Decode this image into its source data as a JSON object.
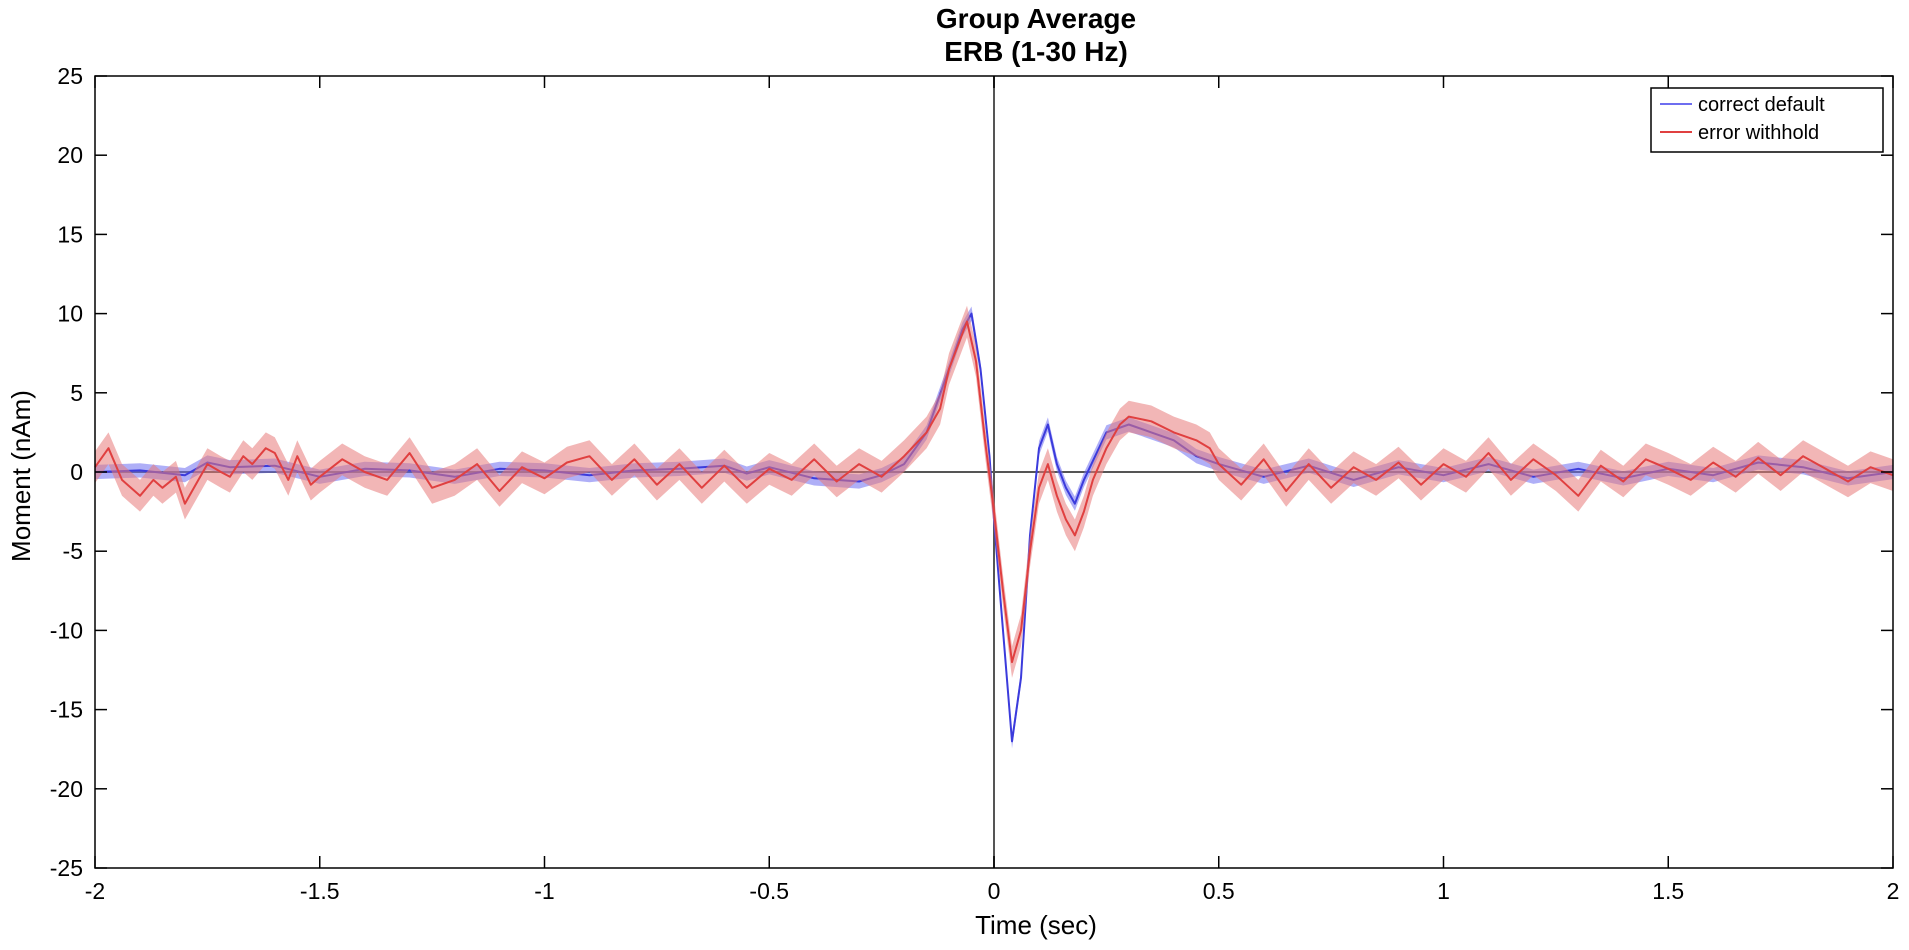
{
  "chart_data": {
    "type": "line",
    "title": "Group Average",
    "subtitle": "ERB (1-30 Hz)",
    "xlabel": "Time (sec)",
    "ylabel": "Moment (nAm)",
    "xlim": [
      -2,
      2
    ],
    "ylim": [
      -25,
      25
    ],
    "xticks": [
      -2,
      -1.5,
      -1,
      -0.5,
      0,
      0.5,
      1,
      1.5,
      2
    ],
    "xtick_labels": [
      "-2",
      "-1.5",
      "-1",
      "-0.5",
      "0",
      "0.5",
      "1",
      "1.5",
      "2"
    ],
    "yticks": [
      25,
      20,
      15,
      10,
      5,
      0,
      -5,
      -10,
      -15,
      -20,
      -25
    ],
    "ytick_labels": [
      "25",
      "20",
      "15",
      "10",
      "5",
      "0",
      "-5",
      "-10",
      "-15",
      "-20",
      "-25"
    ],
    "grid": false,
    "reference_lines": {
      "x": 0,
      "y": 0
    },
    "legend": {
      "placement": "top-right",
      "entries": [
        "correct default",
        "error withhold"
      ]
    },
    "series": [
      {
        "name": "correct default",
        "color": "#3b3bdc",
        "band_color": "#6e6ef0",
        "band_halfwidth": 0.45,
        "x": [
          -2.0,
          -1.9,
          -1.8,
          -1.75,
          -1.7,
          -1.6,
          -1.5,
          -1.4,
          -1.3,
          -1.2,
          -1.1,
          -1.0,
          -0.9,
          -0.8,
          -0.7,
          -0.6,
          -0.55,
          -0.5,
          -0.4,
          -0.3,
          -0.25,
          -0.2,
          -0.15,
          -0.1,
          -0.07,
          -0.05,
          -0.03,
          -0.01,
          0.0,
          0.02,
          0.04,
          0.06,
          0.08,
          0.1,
          0.12,
          0.14,
          0.16,
          0.18,
          0.2,
          0.25,
          0.3,
          0.35,
          0.4,
          0.45,
          0.5,
          0.6,
          0.7,
          0.8,
          0.9,
          1.0,
          1.1,
          1.2,
          1.3,
          1.4,
          1.5,
          1.6,
          1.7,
          1.8,
          1.9,
          2.0
        ],
        "y": [
          0.0,
          0.1,
          -0.2,
          0.6,
          0.3,
          0.4,
          -0.3,
          0.2,
          0.1,
          -0.3,
          0.2,
          0.1,
          -0.2,
          0.1,
          0.2,
          0.4,
          -0.1,
          0.3,
          -0.4,
          -0.6,
          -0.2,
          0.5,
          2.5,
          6.5,
          9.0,
          10.0,
          6.5,
          1.0,
          -3.0,
          -10.0,
          -17.0,
          -13.0,
          -4.0,
          1.5,
          3.0,
          0.5,
          -1.0,
          -2.0,
          -0.5,
          2.5,
          3.0,
          2.5,
          2.0,
          1.0,
          0.5,
          -0.3,
          0.4,
          -0.5,
          0.3,
          -0.2,
          0.5,
          -0.3,
          0.2,
          -0.4,
          0.2,
          -0.2,
          0.6,
          0.3,
          -0.4,
          0.0
        ]
      },
      {
        "name": "error withhold",
        "color": "#e04040",
        "band_color": "#e87a7a",
        "band_halfwidth": 1.0,
        "x": [
          -2.0,
          -1.97,
          -1.94,
          -1.9,
          -1.87,
          -1.85,
          -1.82,
          -1.8,
          -1.77,
          -1.75,
          -1.72,
          -1.7,
          -1.67,
          -1.65,
          -1.62,
          -1.6,
          -1.57,
          -1.55,
          -1.52,
          -1.5,
          -1.45,
          -1.4,
          -1.35,
          -1.3,
          -1.25,
          -1.2,
          -1.15,
          -1.1,
          -1.05,
          -1.0,
          -0.95,
          -0.9,
          -0.85,
          -0.8,
          -0.75,
          -0.7,
          -0.65,
          -0.6,
          -0.55,
          -0.5,
          -0.45,
          -0.4,
          -0.35,
          -0.3,
          -0.25,
          -0.2,
          -0.15,
          -0.12,
          -0.1,
          -0.08,
          -0.06,
          -0.04,
          -0.02,
          0.0,
          0.02,
          0.04,
          0.06,
          0.08,
          0.1,
          0.12,
          0.14,
          0.16,
          0.18,
          0.2,
          0.22,
          0.25,
          0.28,
          0.3,
          0.35,
          0.4,
          0.45,
          0.48,
          0.5,
          0.55,
          0.6,
          0.65,
          0.7,
          0.75,
          0.8,
          0.85,
          0.9,
          0.95,
          1.0,
          1.05,
          1.1,
          1.15,
          1.2,
          1.25,
          1.3,
          1.35,
          1.4,
          1.45,
          1.5,
          1.55,
          1.6,
          1.65,
          1.7,
          1.75,
          1.8,
          1.85,
          1.9,
          1.95,
          2.0
        ],
        "y": [
          0.3,
          1.5,
          -0.5,
          -1.5,
          -0.5,
          -1.0,
          -0.3,
          -2.0,
          -0.5,
          0.5,
          0.0,
          -0.3,
          1.0,
          0.5,
          1.5,
          1.2,
          -0.5,
          1.0,
          -0.8,
          -0.3,
          0.8,
          0.0,
          -0.5,
          1.2,
          -1.0,
          -0.5,
          0.5,
          -1.2,
          0.3,
          -0.4,
          0.6,
          1.0,
          -0.5,
          0.8,
          -0.8,
          0.5,
          -1.0,
          0.4,
          -1.0,
          0.2,
          -0.5,
          0.8,
          -0.6,
          0.5,
          -0.3,
          1.0,
          2.5,
          4.0,
          6.5,
          8.0,
          9.5,
          7.0,
          2.0,
          -2.5,
          -7.5,
          -12.0,
          -10.0,
          -5.0,
          -1.0,
          0.5,
          -1.5,
          -3.0,
          -4.0,
          -2.5,
          -0.5,
          1.5,
          3.0,
          3.5,
          3.2,
          2.5,
          2.0,
          1.5,
          0.5,
          -0.8,
          0.8,
          -1.2,
          0.5,
          -1.0,
          0.3,
          -0.5,
          0.6,
          -0.8,
          0.5,
          -0.3,
          1.2,
          -0.5,
          0.8,
          -0.2,
          -1.5,
          0.4,
          -0.6,
          0.8,
          0.2,
          -0.5,
          0.6,
          -0.3,
          0.9,
          -0.2,
          1.0,
          0.2,
          -0.6,
          0.3,
          -0.2
        ]
      }
    ]
  }
}
